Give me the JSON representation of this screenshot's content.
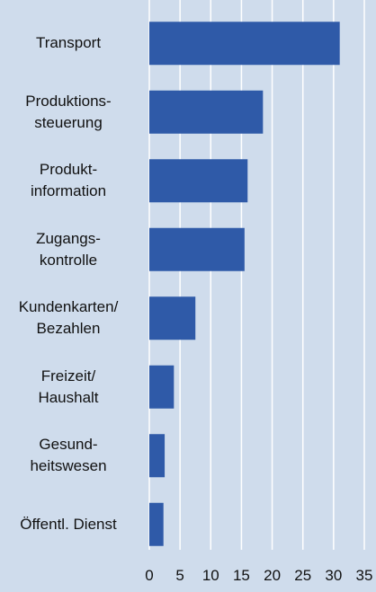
{
  "chart_data": {
    "type": "barh",
    "categories": [
      "Transport",
      "Produktions-\nsteuerung",
      "Produkt-\ninformation",
      "Zugangs-\nkontrolle",
      "Kundenkarten/\nBezahlen",
      "Freizeit/\nHaushalt",
      "Gesund-\nheitswesen",
      "Öffentl. Dienst"
    ],
    "values": [
      31,
      18.5,
      16,
      15.5,
      7.5,
      4,
      2.5,
      2.3
    ],
    "color": "#2f5aa8",
    "xlim": [
      0,
      35
    ],
    "xticks": [
      0,
      5,
      10,
      15,
      20,
      25,
      30,
      35
    ],
    "grid": true
  }
}
